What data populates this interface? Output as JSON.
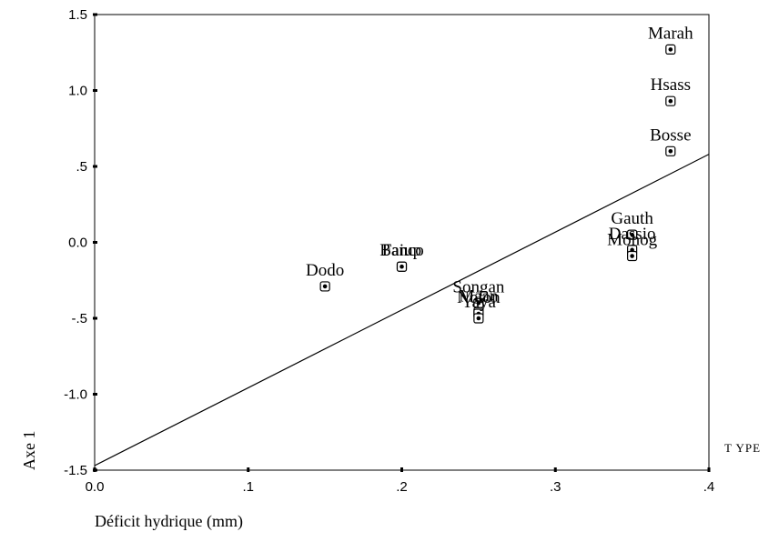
{
  "chart_data": {
    "type": "scatter",
    "title": "",
    "xlabel": "Déficit hydrique (mm)",
    "ylabel": "Axe 1",
    "legend_title": "T YPE",
    "xlim": [
      0.0,
      0.4
    ],
    "ylim": [
      -1.5,
      1.5
    ],
    "x_ticks": [
      {
        "value": 0.0,
        "label": "0.0"
      },
      {
        "value": 0.1,
        "label": ".1"
      },
      {
        "value": 0.2,
        "label": ".2"
      },
      {
        "value": 0.3,
        "label": ".3"
      },
      {
        "value": 0.4,
        "label": ".4"
      }
    ],
    "y_ticks": [
      {
        "value": 1.5,
        "label": "1.5"
      },
      {
        "value": 1.0,
        "label": "1.0"
      },
      {
        "value": 0.5,
        "label": ".5"
      },
      {
        "value": 0.0,
        "label": "0.0"
      },
      {
        "value": -0.5,
        "label": "-.5"
      },
      {
        "value": -1.0,
        "label": "-1.0"
      },
      {
        "value": -1.5,
        "label": "-1.5"
      }
    ],
    "grid": false,
    "points": [
      {
        "label": "Marah",
        "x": 0.375,
        "y": 1.27
      },
      {
        "label": "Hsass",
        "x": 0.375,
        "y": 0.93
      },
      {
        "label": "Bosse",
        "x": 0.375,
        "y": 0.6
      },
      {
        "label": "Gauth",
        "x": 0.35,
        "y": 0.05
      },
      {
        "label": "Dassio",
        "x": 0.35,
        "y": -0.05
      },
      {
        "label": "Monog",
        "x": 0.35,
        "y": -0.09
      },
      {
        "label": "Banco",
        "x": 0.2,
        "y": -0.16
      },
      {
        "label": "Faiup",
        "x": 0.2,
        "y": -0.16
      },
      {
        "label": "Dodo",
        "x": 0.15,
        "y": -0.29
      },
      {
        "label": "Songan",
        "x": 0.25,
        "y": -0.4
      },
      {
        "label": "Maan",
        "x": 0.25,
        "y": -0.46
      },
      {
        "label": "Nolon",
        "x": 0.25,
        "y": -0.47
      },
      {
        "label": "Yaya",
        "x": 0.25,
        "y": -0.5
      }
    ],
    "fit_line": {
      "x": [
        0.0,
        0.4
      ],
      "y": [
        -1.47,
        0.58
      ]
    }
  }
}
